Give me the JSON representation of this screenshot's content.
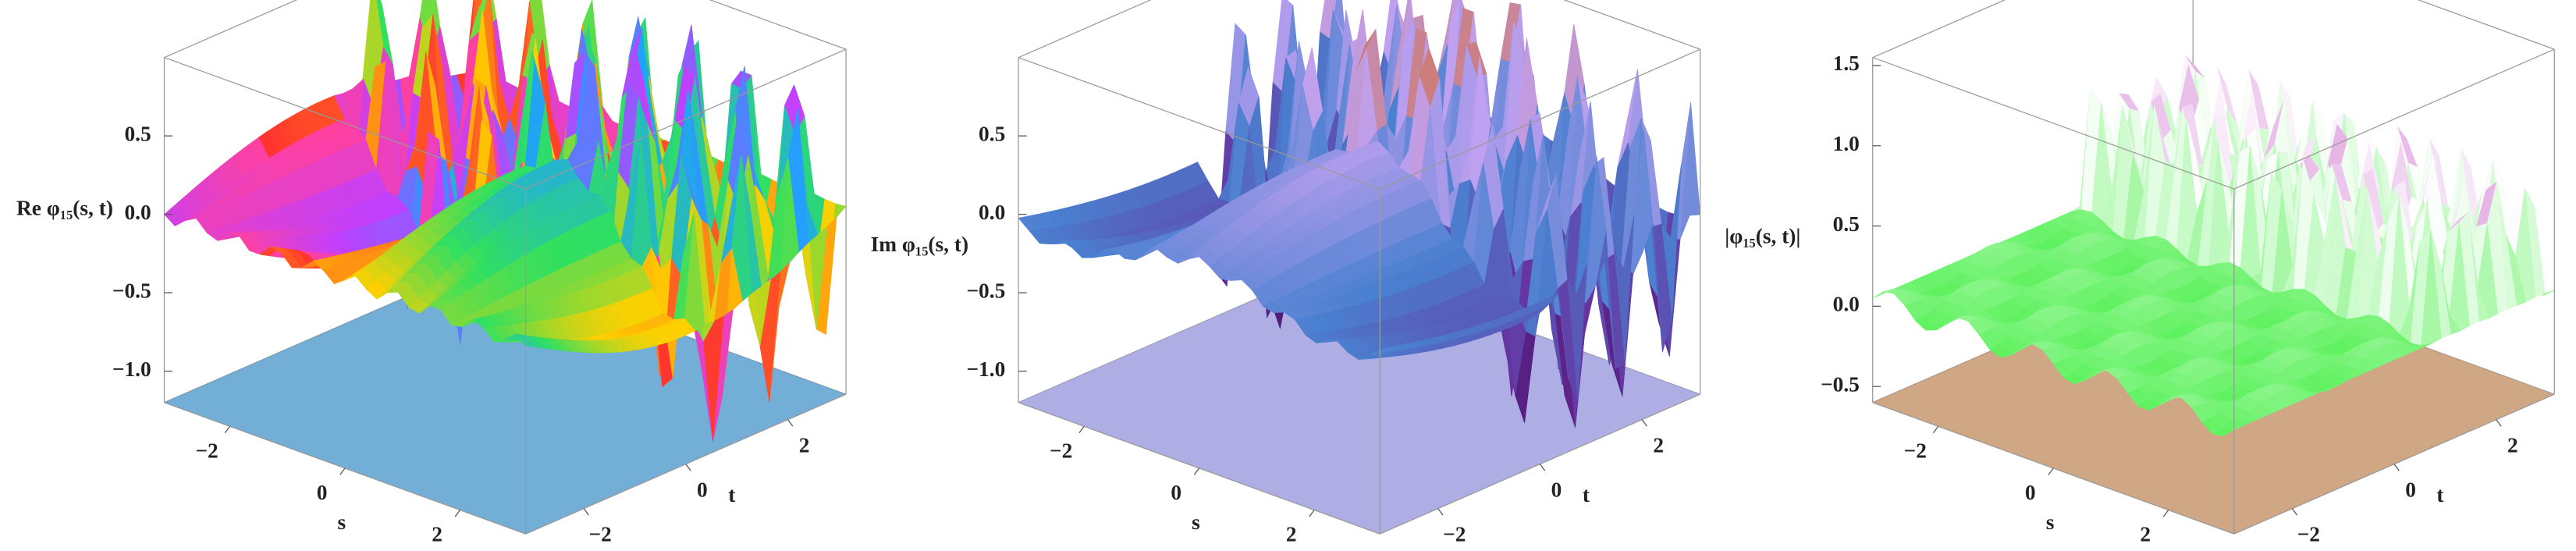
{
  "chart_data": [
    {
      "type": "surface3d",
      "zlabel": "Re φ₁₅(s, t)",
      "xlabel": "s",
      "ylabel": "t",
      "xlim": [
        -3.14,
        3.14
      ],
      "ylim": [
        -3.14,
        3.14
      ],
      "zlim": [
        -1.2,
        1.0
      ],
      "xticks": [
        {
          "value": -2,
          "label": "−2"
        },
        0,
        2
      ],
      "yticks": [
        {
          "value": -2,
          "label": "−2"
        },
        0,
        2
      ],
      "zticks": [
        {
          "value": -1,
          "label": "−1.0"
        },
        {
          "value": -0.5,
          "label": "−0.5"
        },
        {
          "value": 0,
          "label": "0.0"
        },
        0.5
      ],
      "colors": [
        "#ff3030",
        "#ffd000",
        "#30e060",
        "#20a0ff",
        "#c040ff",
        "#ff40a0"
      ],
      "base_color": "#5aa0d0"
    },
    {
      "type": "surface3d",
      "zlabel": "Im φ₁₅(s, t)",
      "xlabel": "s",
      "ylabel": "t",
      "xlim": [
        -3.14,
        3.14
      ],
      "ylim": [
        -3.14,
        3.14
      ],
      "zlim": [
        -1.2,
        1.0
      ],
      "xticks": [
        {
          "value": -2,
          "label": "−2"
        },
        0,
        2
      ],
      "yticks": [
        {
          "value": -2,
          "label": "−2"
        },
        0,
        2
      ],
      "zticks": [
        {
          "value": -1,
          "label": "−1.0"
        },
        {
          "value": -0.5,
          "label": "−0.5"
        },
        {
          "value": 0,
          "label": "0.0"
        },
        0.5
      ],
      "colors": [
        "#2a0a4a",
        "#6a2a9a",
        "#4a80d0",
        "#c0a0f0",
        "#d07050"
      ],
      "base_color": "#a0a0e0"
    },
    {
      "type": "surface3d",
      "zlabel": "|φ₁₅(s, t)|",
      "xlabel": "s",
      "ylabel": "t",
      "xlim": [
        -3.14,
        3.14
      ],
      "ylim": [
        -3.14,
        3.14
      ],
      "zlim": [
        -0.6,
        1.55
      ],
      "xticks": [
        {
          "value": -2,
          "label": "−2"
        },
        0,
        2
      ],
      "yticks": [
        {
          "value": -2,
          "label": "−2"
        },
        0,
        2
      ],
      "zticks": [
        {
          "value": -0.5,
          "label": "−0.5"
        },
        {
          "value": 0,
          "label": "0.0"
        },
        0.5,
        {
          "value": 1,
          "label": "1.0"
        },
        1.5
      ],
      "colors": [
        "#1a5a1a",
        "#50f050",
        "#ffffff",
        "#c040c0",
        "#3a0a3a"
      ],
      "base_color": "#c89870"
    }
  ]
}
